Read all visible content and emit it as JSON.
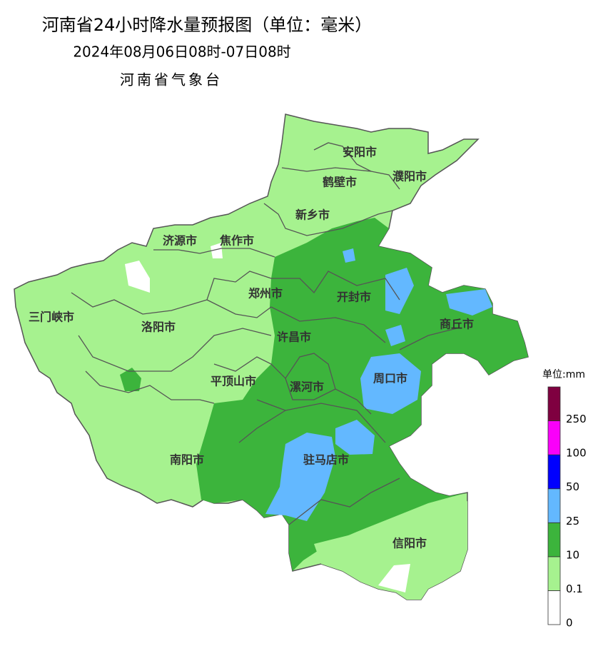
{
  "header": {
    "title": "河南省24小时降水量预报图（单位：毫米）",
    "subtitle": "2024年08月06日08时-07日08时",
    "issuer": "河南省气象台"
  },
  "cities": [
    {
      "name": "安阳市"
    },
    {
      "name": "鹤壁市"
    },
    {
      "name": "濮阳市"
    },
    {
      "name": "新乡市"
    },
    {
      "name": "济源市"
    },
    {
      "name": "焦作市"
    },
    {
      "name": "郑州市"
    },
    {
      "name": "开封市"
    },
    {
      "name": "商丘市"
    },
    {
      "name": "三门峡市"
    },
    {
      "name": "洛阳市"
    },
    {
      "name": "许昌市"
    },
    {
      "name": "平顶山市"
    },
    {
      "name": "漯河市"
    },
    {
      "name": "周口市"
    },
    {
      "name": "南阳市"
    },
    {
      "name": "驻马店市"
    },
    {
      "name": "信阳市"
    }
  ],
  "legend": {
    "title": "单位:mm",
    "levels": [
      0,
      0.1,
      10,
      25,
      50,
      100,
      250
    ],
    "colors": [
      "#ffffff",
      "#a6f28f",
      "#3cb43c",
      "#63b8ff",
      "#0000fe",
      "#fa00fa",
      "#7f0040"
    ]
  }
}
